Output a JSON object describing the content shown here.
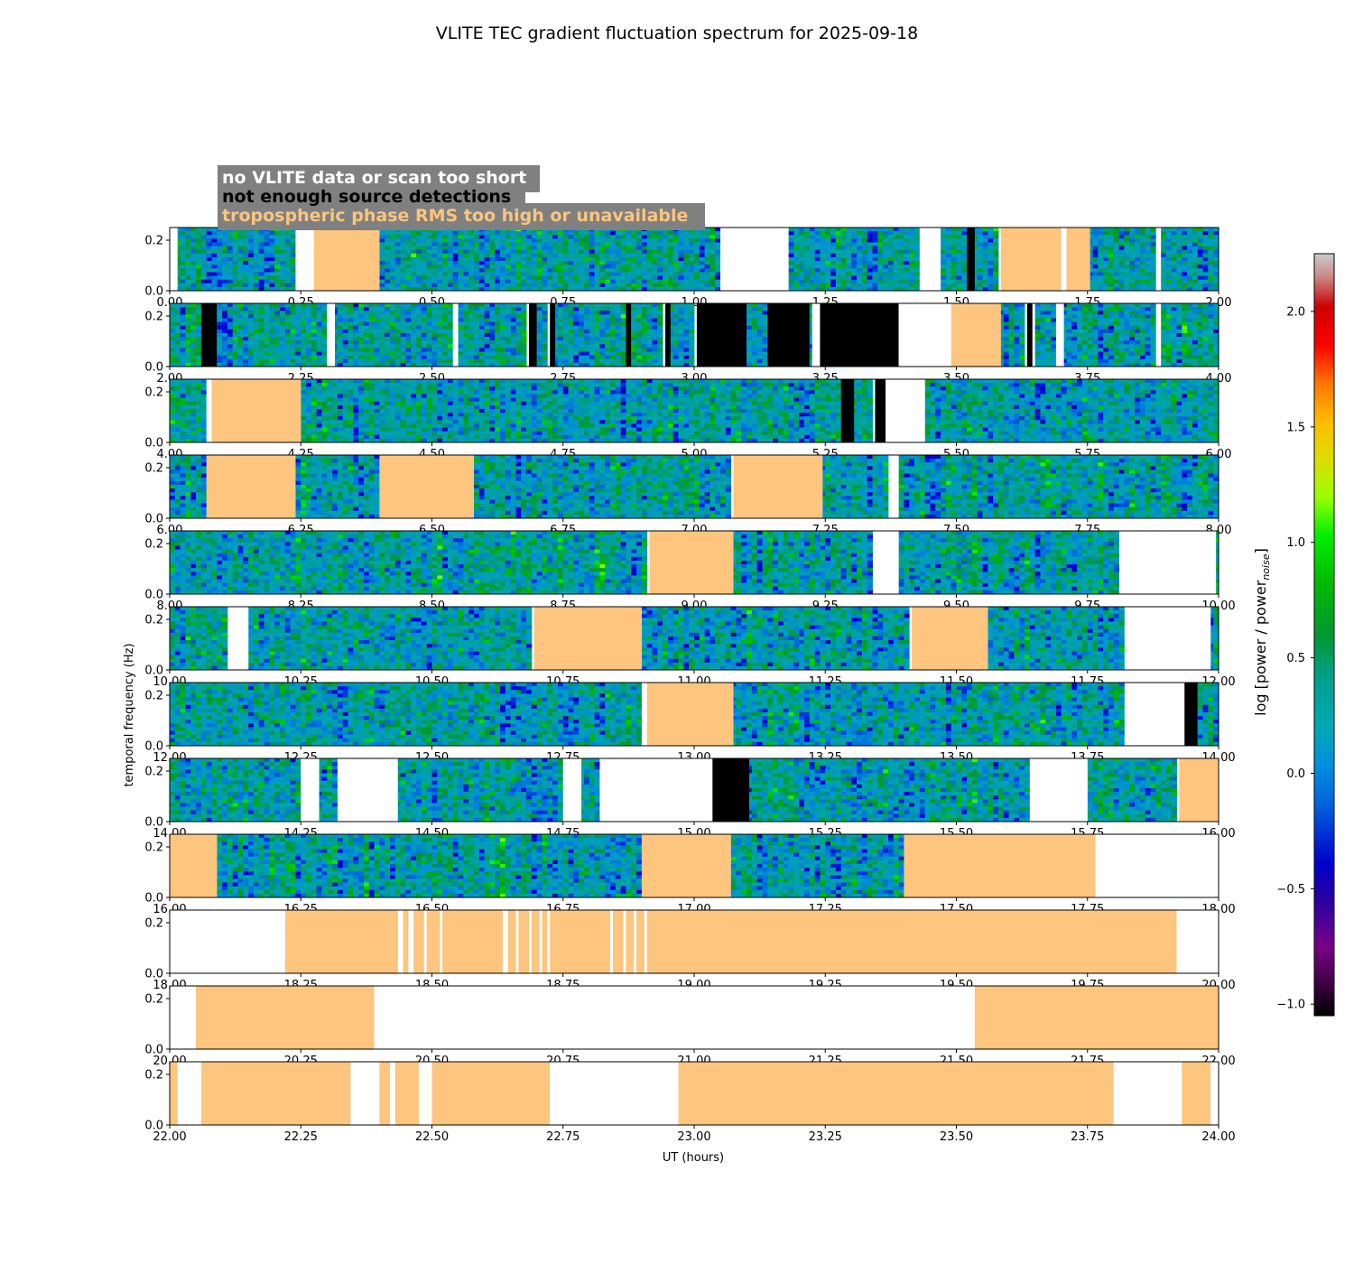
{
  "chart_data": {
    "type": "heatmap",
    "title": "VLITE TEC gradient fluctuation spectrum for 2025-09-18",
    "xlabel": "UT (hours)",
    "ylabel": "temporal frequency (Hz)",
    "ylim": [
      0.0,
      0.25
    ],
    "y_ticks": [
      "0.0",
      "0.2"
    ],
    "panel_span_hours": 2,
    "legend": [
      {
        "label": "no VLITE data or scan too short",
        "color": "#ffffff"
      },
      {
        "label": "not enough source detections",
        "color": "#000000"
      },
      {
        "label": "tropospheric phase RMS too high or unavailable",
        "color": "#fdc57e"
      }
    ],
    "colorbar": {
      "label": "log [power / power",
      "label_sub": "noise",
      "label_end": "]",
      "range": [
        -1.05,
        2.25
      ],
      "ticks": [
        "−1.0",
        "−0.5",
        "0.0",
        "0.5",
        "1.0",
        "1.5",
        "2.0"
      ],
      "tick_values": [
        -1.0,
        -0.5,
        0.0,
        0.5,
        1.0,
        1.5,
        2.0
      ],
      "colormap": "nipy_spectral"
    },
    "panels": [
      {
        "start": 0,
        "x_ticks": [
          "0.00",
          "0.25",
          "0.50",
          "0.75",
          "1.00",
          "1.25",
          "1.50",
          "1.75",
          "2.00"
        ],
        "segments": [
          [
            0,
            0.015,
            "white"
          ],
          [
            0.24,
            0.275,
            "white"
          ],
          [
            0.275,
            0.4,
            "orange"
          ],
          [
            1.05,
            1.18,
            "white"
          ],
          [
            1.43,
            1.465,
            "white"
          ],
          [
            1.52,
            1.535,
            "black"
          ],
          [
            1.585,
            1.7,
            "orange"
          ],
          [
            1.7,
            1.71,
            "white"
          ],
          [
            1.71,
            1.755,
            "orange"
          ],
          [
            1.885,
            1.89,
            "white"
          ]
        ]
      },
      {
        "start": 2,
        "x_ticks": [
          "2.00",
          "2.25",
          "2.50",
          "2.75",
          "3.00",
          "3.25",
          "3.50",
          "3.75",
          "4.00"
        ],
        "segments": [
          [
            2.06,
            2.09,
            "black"
          ],
          [
            2.3,
            2.315,
            "white"
          ],
          [
            2.54,
            2.55,
            "white"
          ],
          [
            2.685,
            2.7,
            "black"
          ],
          [
            2.725,
            2.735,
            "black"
          ],
          [
            2.87,
            2.88,
            "black"
          ],
          [
            2.945,
            2.955,
            "black"
          ],
          [
            3.005,
            3.1,
            "black"
          ],
          [
            3.14,
            3.22,
            "black"
          ],
          [
            3.225,
            3.24,
            "white"
          ],
          [
            3.24,
            3.39,
            "black"
          ],
          [
            3.39,
            3.49,
            "white"
          ],
          [
            3.49,
            3.585,
            "orange"
          ],
          [
            3.635,
            3.645,
            "black"
          ],
          [
            3.69,
            3.705,
            "white"
          ],
          [
            3.885,
            3.89,
            "white"
          ]
        ]
      },
      {
        "start": 4,
        "x_ticks": [
          "4.00",
          "4.25",
          "4.50",
          "4.75",
          "5.00",
          "5.25",
          "5.50",
          "5.75",
          "6.00"
        ],
        "segments": [
          [
            4.07,
            4.08,
            "white"
          ],
          [
            4.08,
            4.25,
            "orange"
          ],
          [
            5.28,
            5.305,
            "black"
          ],
          [
            5.345,
            5.365,
            "black"
          ],
          [
            5.365,
            5.44,
            "white"
          ]
        ]
      },
      {
        "start": 6,
        "x_ticks": [
          "6.00",
          "6.25",
          "6.50",
          "6.75",
          "7.00",
          "7.25",
          "7.50",
          "7.75",
          "8.00"
        ],
        "segments": [
          [
            6.07,
            6.24,
            "orange"
          ],
          [
            6.4,
            6.58,
            "orange"
          ],
          [
            7.075,
            7.245,
            "orange"
          ],
          [
            7.375,
            7.39,
            "white"
          ]
        ]
      },
      {
        "start": 8,
        "x_ticks": [
          "8.00",
          "8.25",
          "8.50",
          "8.75",
          "9.00",
          "9.25",
          "9.50",
          "9.75",
          "10.00"
        ],
        "segments": [
          [
            8.915,
            9.075,
            "orange"
          ],
          [
            9.345,
            9.39,
            "white"
          ],
          [
            9.815,
            9.995,
            "white"
          ]
        ]
      },
      {
        "start": 10,
        "x_ticks": [
          "10.00",
          "10.25",
          "10.50",
          "10.75",
          "11.00",
          "11.25",
          "11.50",
          "11.75",
          "12.00"
        ],
        "segments": [
          [
            10.115,
            10.15,
            "white"
          ],
          [
            10.695,
            10.9,
            "orange"
          ],
          [
            11.415,
            11.56,
            "orange"
          ],
          [
            11.825,
            11.985,
            "white"
          ]
        ]
      },
      {
        "start": 12,
        "x_ticks": [
          "12.00",
          "12.25",
          "12.50",
          "12.75",
          "13.00",
          "13.25",
          "13.50",
          "13.75",
          "14.00"
        ],
        "segments": [
          [
            12.9,
            12.91,
            "white"
          ],
          [
            12.91,
            13.075,
            "orange"
          ],
          [
            13.825,
            13.935,
            "white"
          ],
          [
            13.935,
            13.96,
            "black"
          ]
        ]
      },
      {
        "start": 14,
        "x_ticks": [
          "14.00",
          "14.25",
          "14.50",
          "14.75",
          "15.00",
          "15.25",
          "15.50",
          "15.75",
          "16.00"
        ],
        "segments": [
          [
            14.25,
            14.285,
            "white"
          ],
          [
            14.32,
            14.435,
            "white"
          ],
          [
            14.75,
            14.785,
            "white"
          ],
          [
            14.82,
            15.035,
            "white"
          ],
          [
            15.035,
            15.105,
            "black"
          ],
          [
            15.64,
            15.75,
            "white"
          ],
          [
            15.925,
            16.0,
            "orange"
          ]
        ]
      },
      {
        "start": 16,
        "x_ticks": [
          "16.00",
          "16.25",
          "16.50",
          "16.75",
          "17.00",
          "17.25",
          "17.50",
          "17.75",
          "18.00"
        ],
        "segments": [
          [
            16.0,
            16.09,
            "orange"
          ],
          [
            16.9,
            17.07,
            "orange"
          ],
          [
            17.4,
            17.765,
            "orange"
          ],
          [
            17.765,
            18.0,
            "white"
          ]
        ]
      },
      {
        "start": 18,
        "x_ticks": [
          "18.00",
          "18.25",
          "18.50",
          "18.75",
          "19.00",
          "19.25",
          "19.50",
          "19.75",
          "20.00"
        ],
        "segments": [
          [
            18.0,
            18.22,
            "white"
          ],
          [
            18.22,
            19.92,
            "orange"
          ],
          [
            18.435,
            18.445,
            "white"
          ],
          [
            18.455,
            18.465,
            "white"
          ],
          [
            18.485,
            18.49,
            "white"
          ],
          [
            18.515,
            18.52,
            "white"
          ],
          [
            18.635,
            18.645,
            "white"
          ],
          [
            18.66,
            18.665,
            "white"
          ],
          [
            18.685,
            18.69,
            "white"
          ],
          [
            18.705,
            18.71,
            "white"
          ],
          [
            18.72,
            18.725,
            "white"
          ],
          [
            18.84,
            18.845,
            "white"
          ],
          [
            18.865,
            18.87,
            "white"
          ],
          [
            18.885,
            18.89,
            "white"
          ],
          [
            18.905,
            18.91,
            "white"
          ],
          [
            19.92,
            20.0,
            "white"
          ]
        ]
      },
      {
        "start": 20,
        "x_ticks": [
          "20.00",
          "20.25",
          "20.50",
          "20.75",
          "21.00",
          "21.25",
          "21.50",
          "21.75",
          "22.00"
        ],
        "segments": [
          [
            20.0,
            20.05,
            "white"
          ],
          [
            20.05,
            20.39,
            "orange"
          ],
          [
            20.39,
            21.535,
            "white"
          ],
          [
            21.535,
            22.0,
            "orange"
          ]
        ]
      },
      {
        "start": 22,
        "x_ticks": [
          "22.00",
          "22.25",
          "22.50",
          "22.75",
          "23.00",
          "23.25",
          "23.50",
          "23.75",
          "24.00"
        ],
        "segments": [
          [
            22.0,
            22.015,
            "orange"
          ],
          [
            22.015,
            22.06,
            "white"
          ],
          [
            22.06,
            22.345,
            "orange"
          ],
          [
            22.345,
            22.4,
            "white"
          ],
          [
            22.4,
            22.42,
            "orange"
          ],
          [
            22.42,
            22.43,
            "white"
          ],
          [
            22.43,
            22.475,
            "orange"
          ],
          [
            22.475,
            22.5,
            "white"
          ],
          [
            22.5,
            22.725,
            "orange"
          ],
          [
            22.725,
            22.97,
            "white"
          ],
          [
            22.97,
            23.8,
            "orange"
          ],
          [
            23.8,
            23.93,
            "white"
          ],
          [
            23.93,
            23.985,
            "orange"
          ],
          [
            23.985,
            24.0,
            "white"
          ]
        ]
      }
    ]
  }
}
